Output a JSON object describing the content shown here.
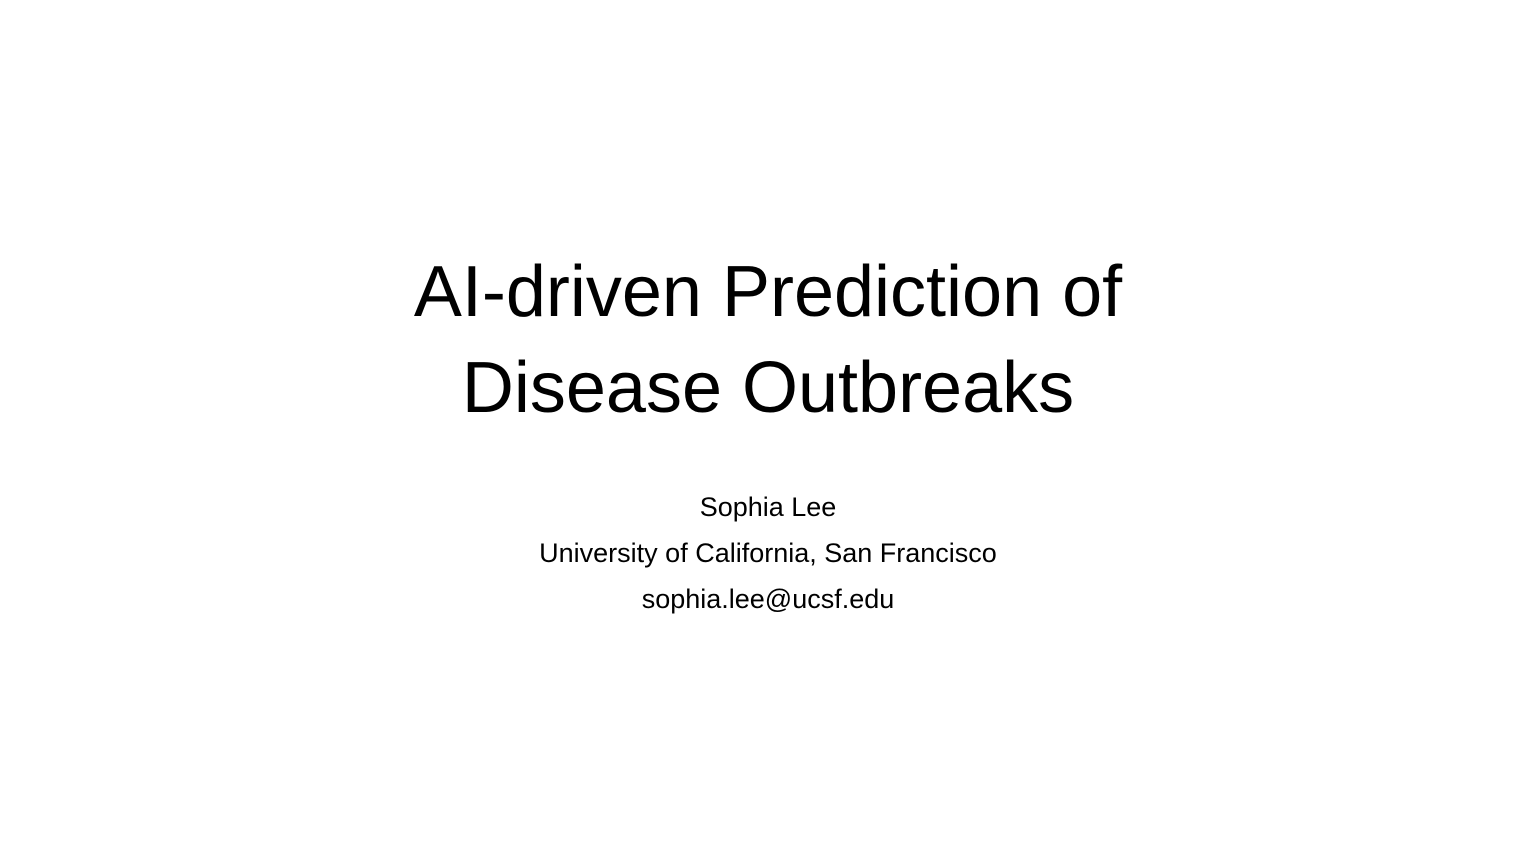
{
  "slide": {
    "title_lines": [
      "AI-driven Prediction of",
      "Disease Outbreaks"
    ],
    "author": "Sophia Lee",
    "affiliation": "University of California, San Francisco",
    "email": "sophia.lee@ucsf.edu"
  }
}
